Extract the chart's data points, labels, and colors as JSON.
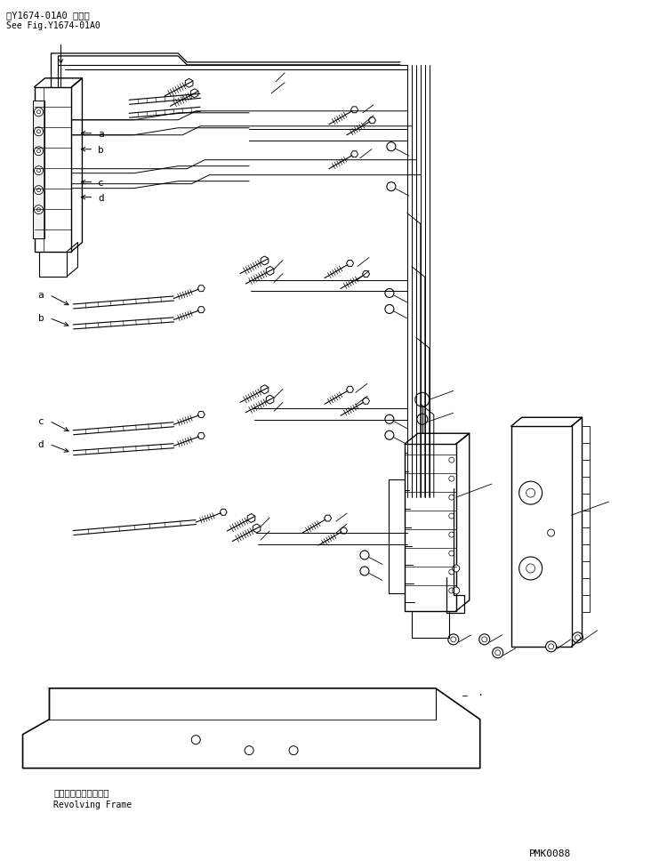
{
  "bg_color": "#ffffff",
  "line_color": "#000000",
  "fig_width": 7.32,
  "fig_height": 9.68,
  "dpi": 100,
  "top_text_line1": "第Y1674-01A0 図参照",
  "top_text_line2": "See Fig.Y1674-01A0",
  "bottom_label_jp": "レボルビングフレーム",
  "bottom_label_en": "Revolving Frame",
  "part_number": "PMK0088",
  "labels_top_block": [
    "a",
    "b",
    "c",
    "d"
  ],
  "labels_mid_ab": [
    "a",
    "b"
  ],
  "labels_mid_cd": [
    "c",
    "d"
  ]
}
